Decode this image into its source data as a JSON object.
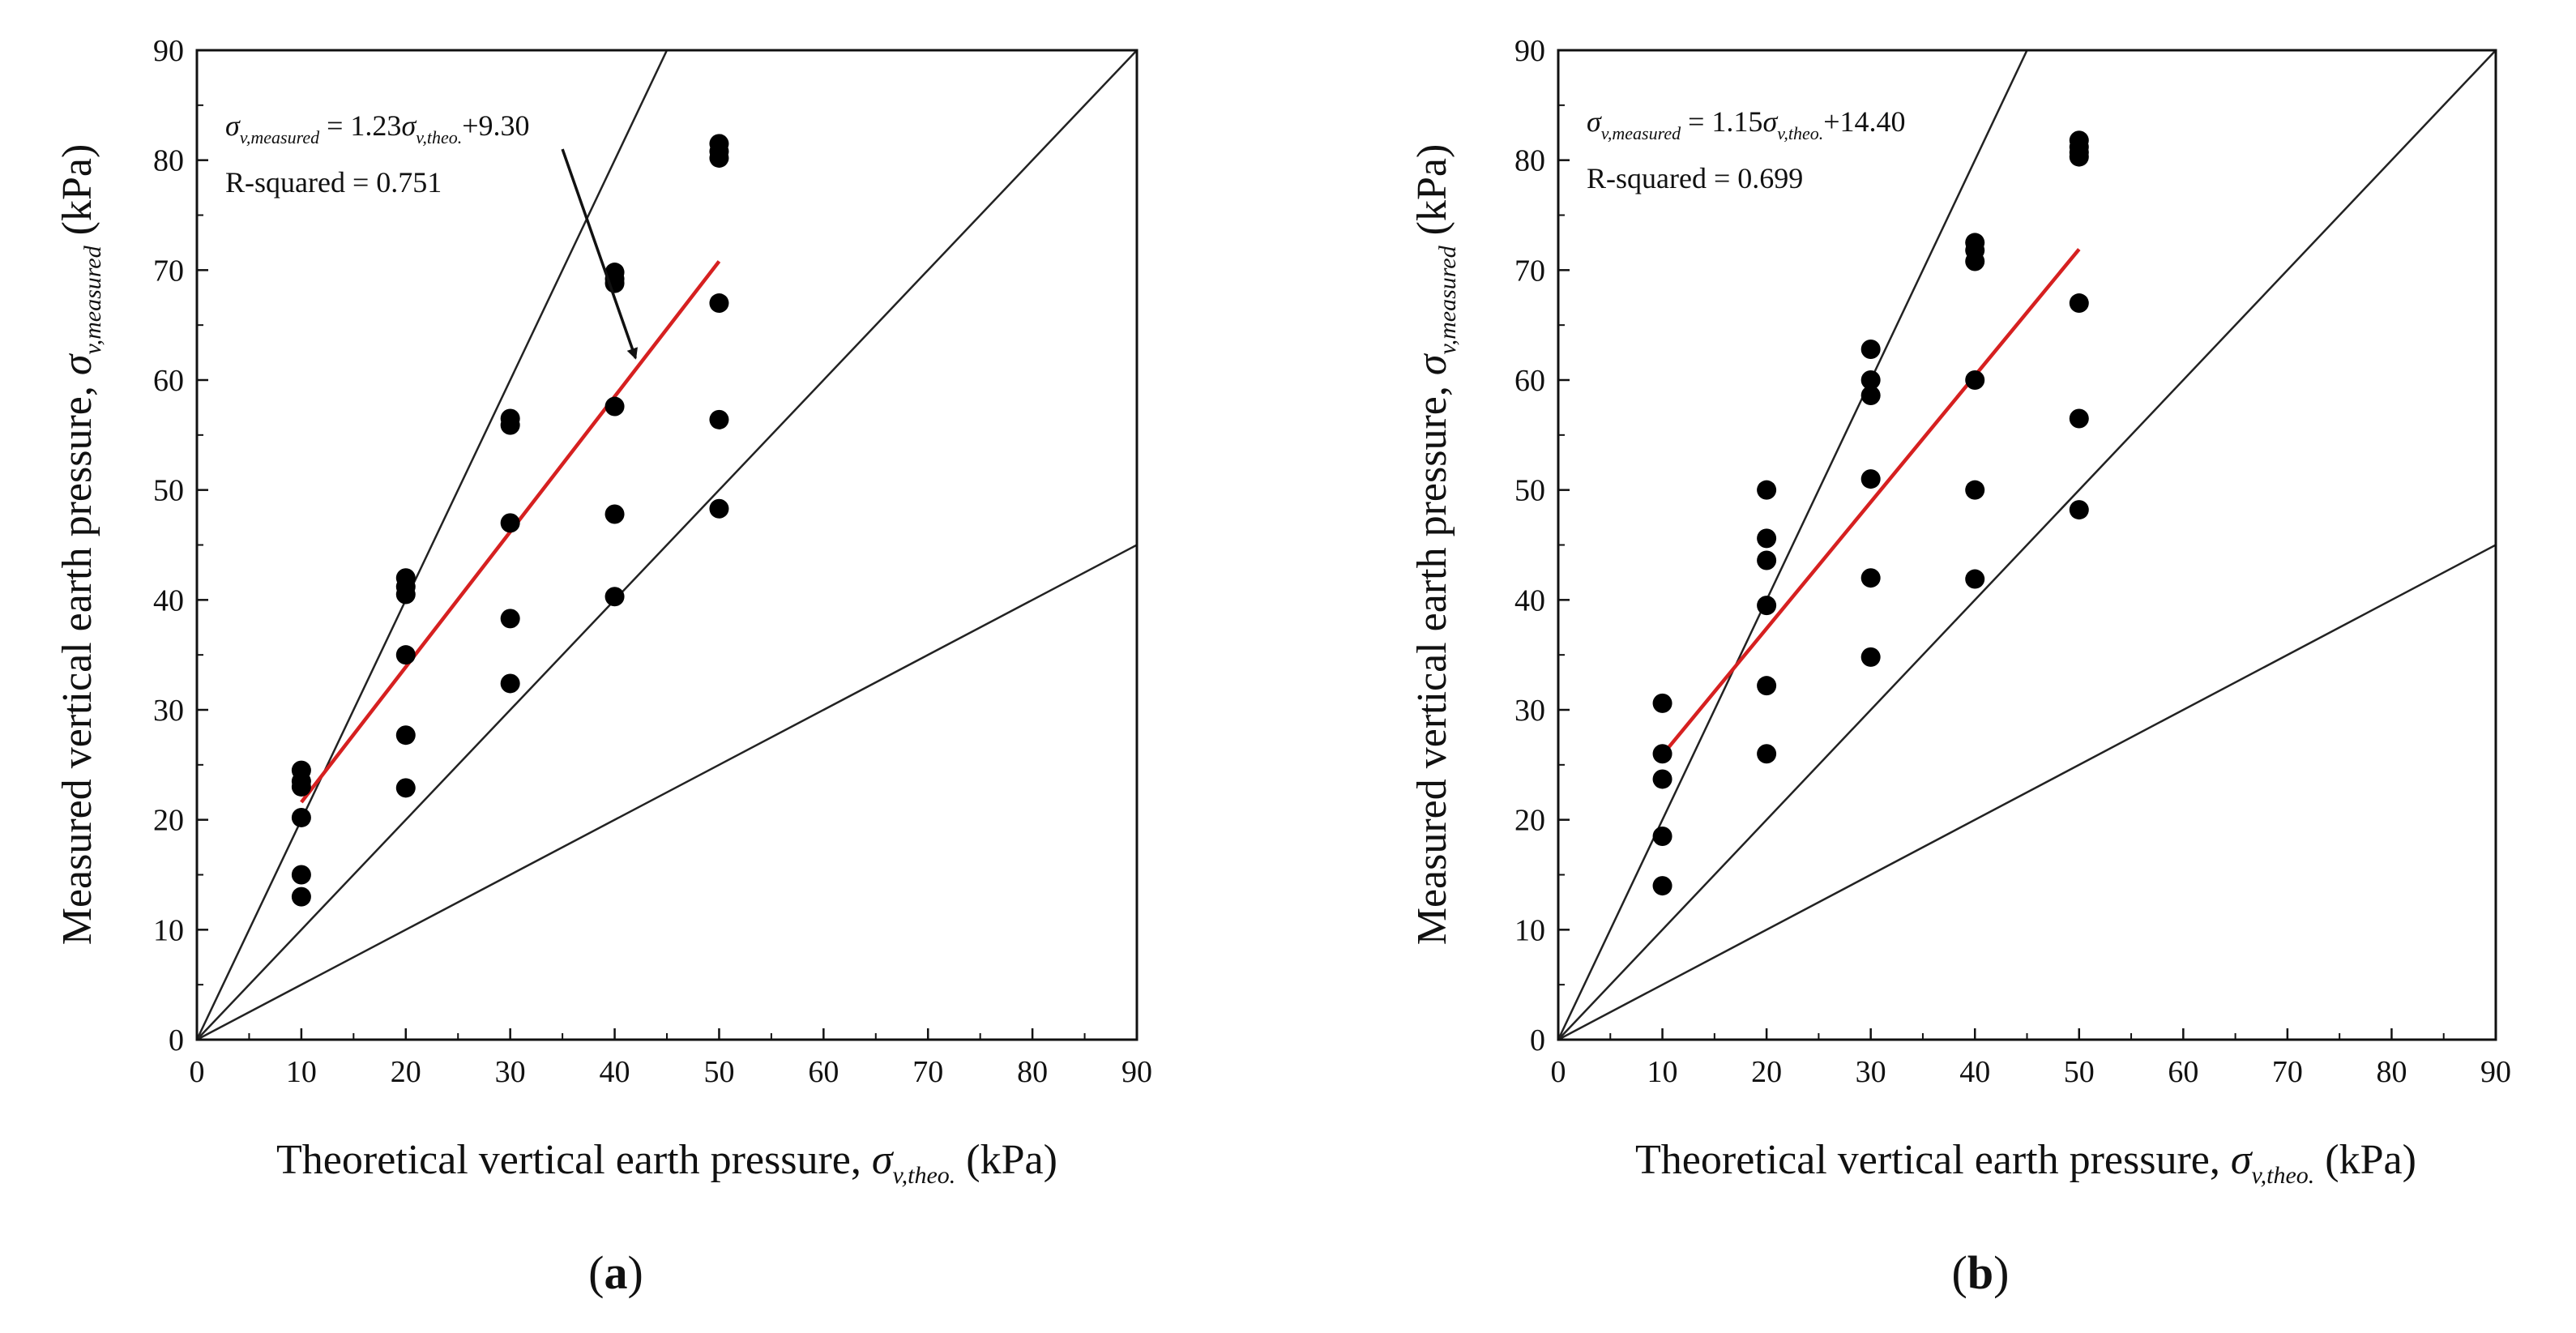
{
  "panels": [
    {
      "panel_label": "a",
      "equation": {
        "sigma": "σ",
        "lhs_sub": "v,measured",
        "middle": " = 1.23",
        "rhs_sub": "v,theo.",
        "tail": "+9.30"
      },
      "r_squared_text": "R-squared = 0.751",
      "xlabel": {
        "text": "Theoretical vertical earth pressure, ",
        "sigma": "σ",
        "sub": "v,theo.",
        "unit": " (kPa)"
      },
      "ylabel": {
        "text": "Measured vertical earth pressure, ",
        "sigma": "σ",
        "sub": "v,measured",
        "unit": " (kPa)"
      }
    },
    {
      "panel_label": "b",
      "equation": {
        "sigma": "σ",
        "lhs_sub": "v,measured",
        "middle": " = 1.15",
        "rhs_sub": "v,theo.",
        "tail": "+14.40"
      },
      "r_squared_text": "R-squared = 0.699",
      "xlabel": {
        "text": "Theoretical vertical earth pressure, ",
        "sigma": "σ",
        "sub": "v,theo.",
        "unit": " (kPa)"
      },
      "ylabel": {
        "text": "Measured vertical earth pressure, ",
        "sigma": "σ",
        "sub": "v,measured",
        "unit": " (kPa)"
      }
    }
  ],
  "chart_data": [
    {
      "type": "scatter",
      "panel": "a",
      "xlim": [
        0,
        90
      ],
      "ylim": [
        0,
        90
      ],
      "x_ticks": [
        0,
        10,
        20,
        30,
        40,
        50,
        60,
        70,
        80,
        90
      ],
      "y_ticks": [
        0,
        10,
        20,
        30,
        40,
        50,
        60,
        70,
        80,
        90
      ],
      "points": [
        [
          10,
          24.5
        ],
        [
          10,
          23.5
        ],
        [
          10,
          23.0
        ],
        [
          10,
          20.2
        ],
        [
          10,
          15.0
        ],
        [
          10,
          13.0
        ],
        [
          20,
          42.0
        ],
        [
          20,
          41.2
        ],
        [
          20,
          40.5
        ],
        [
          20,
          35.0
        ],
        [
          20,
          27.7
        ],
        [
          20,
          22.9
        ],
        [
          30,
          56.5
        ],
        [
          30,
          55.9
        ],
        [
          30,
          47.0
        ],
        [
          30,
          38.3
        ],
        [
          30,
          32.4
        ],
        [
          40,
          69.8
        ],
        [
          40,
          69.2
        ],
        [
          40,
          68.8
        ],
        [
          40,
          57.6
        ],
        [
          40,
          47.8
        ],
        [
          40,
          40.3
        ],
        [
          50,
          81.5
        ],
        [
          50,
          80.8
        ],
        [
          50,
          80.2
        ],
        [
          50,
          67.0
        ],
        [
          50,
          56.4
        ],
        [
          50,
          48.3
        ]
      ],
      "fit_line": {
        "slope": 1.23,
        "intercept": 9.3,
        "x_range": [
          10,
          50
        ],
        "color": "#d62020"
      },
      "reference_lines": [
        {
          "slope": 2,
          "color": "#222222"
        },
        {
          "slope": 1,
          "color": "#222222"
        },
        {
          "slope": 0.5,
          "color": "#222222"
        }
      ],
      "annotation_arrow": {
        "from": [
          35,
          81
        ],
        "to": [
          42,
          62
        ]
      },
      "point_color": "#000000"
    },
    {
      "type": "scatter",
      "panel": "b",
      "xlim": [
        0,
        90
      ],
      "ylim": [
        0,
        90
      ],
      "x_ticks": [
        0,
        10,
        20,
        30,
        40,
        50,
        60,
        70,
        80,
        90
      ],
      "y_ticks": [
        0,
        10,
        20,
        30,
        40,
        50,
        60,
        70,
        80,
        90
      ],
      "points": [
        [
          10,
          30.6
        ],
        [
          10,
          26.0
        ],
        [
          10,
          23.7
        ],
        [
          10,
          18.5
        ],
        [
          10,
          14.0
        ],
        [
          20,
          50.0
        ],
        [
          20,
          45.6
        ],
        [
          20,
          43.6
        ],
        [
          20,
          39.5
        ],
        [
          20,
          32.2
        ],
        [
          20,
          26.0
        ],
        [
          30,
          62.8
        ],
        [
          30,
          60.0
        ],
        [
          30,
          58.6
        ],
        [
          30,
          51.0
        ],
        [
          30,
          42.0
        ],
        [
          30,
          34.8
        ],
        [
          40,
          72.5
        ],
        [
          40,
          71.8
        ],
        [
          40,
          70.8
        ],
        [
          40,
          60.0
        ],
        [
          40,
          50.0
        ],
        [
          40,
          41.9
        ],
        [
          50,
          81.8
        ],
        [
          50,
          81.2
        ],
        [
          50,
          80.7
        ],
        [
          50,
          80.3
        ],
        [
          50,
          67.0
        ],
        [
          50,
          56.5
        ],
        [
          50,
          48.2
        ]
      ],
      "fit_line": {
        "slope": 1.15,
        "intercept": 14.4,
        "x_range": [
          10,
          50
        ],
        "color": "#d62020"
      },
      "reference_lines": [
        {
          "slope": 2,
          "color": "#222222"
        },
        {
          "slope": 1,
          "color": "#222222"
        },
        {
          "slope": 0.5,
          "color": "#222222"
        }
      ],
      "point_color": "#000000"
    }
  ]
}
